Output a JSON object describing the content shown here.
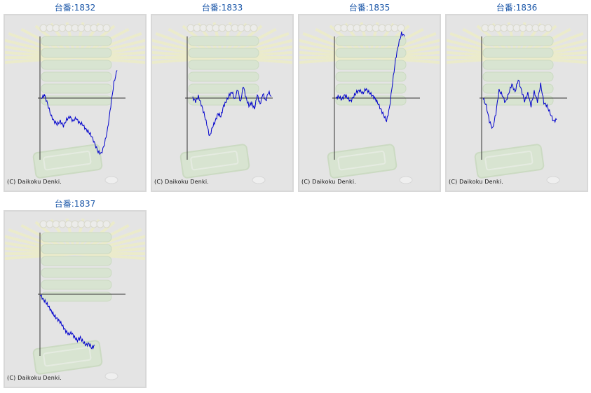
{
  "copyright": "(C) Daikoku Denki.",
  "machines": [
    {
      "label": "台番:1832"
    },
    {
      "label": "台番:1833"
    },
    {
      "label": "台番:1835"
    },
    {
      "label": "台番:1836"
    },
    {
      "label": "台番:1837"
    }
  ],
  "colors": {
    "line": "#0000cc",
    "axis": "#333333",
    "bg": "#e4e4e4",
    "title": "#1a56a8"
  },
  "chart_data": [
    {
      "type": "line",
      "title": "台番:1832",
      "series": [
        {
          "values": [
            0,
            4,
            -8,
            -22,
            -30,
            -34,
            -30,
            -36,
            -28,
            -24,
            -30,
            -26,
            -32,
            -34,
            -40,
            -44,
            -50,
            -60,
            -70,
            -72,
            -60,
            -40,
            -10,
            20,
            36
          ]
        }
      ]
    },
    {
      "type": "line",
      "title": "台番:1833",
      "series": [
        {
          "values": [
            0,
            -4,
            2,
            -8,
            -20,
            -34,
            -50,
            -38,
            -30,
            -20,
            -24,
            -10,
            -4,
            4,
            8,
            -2,
            12,
            -6,
            16,
            0,
            -10,
            -6,
            -14,
            4,
            -8,
            6,
            -4,
            8,
            2
          ]
        }
      ]
    },
    {
      "type": "line",
      "title": "台番:1835",
      "series": [
        {
          "values": [
            0,
            2,
            -2,
            4,
            0,
            -4,
            2,
            8,
            10,
            6,
            12,
            8,
            4,
            0,
            -6,
            -14,
            -22,
            -30,
            -12,
            20,
            50,
            70,
            84,
            80
          ]
        }
      ]
    },
    {
      "type": "line",
      "title": "台番:1836",
      "series": [
        {
          "values": [
            0,
            -10,
            -30,
            -40,
            -20,
            10,
            4,
            -6,
            6,
            18,
            8,
            24,
            10,
            -4,
            6,
            -10,
            8,
            -4,
            18,
            -6,
            -10,
            -20,
            -30,
            -28
          ]
        }
      ]
    },
    {
      "type": "line",
      "title": "台番:1837",
      "series": [
        {
          "values": [
            0,
            -6,
            -10,
            -16,
            -22,
            -28,
            -32,
            -36,
            -42,
            -48,
            -52,
            -50,
            -56,
            -60,
            -56,
            -62,
            -66,
            -64,
            -70,
            -66
          ]
        }
      ]
    }
  ]
}
